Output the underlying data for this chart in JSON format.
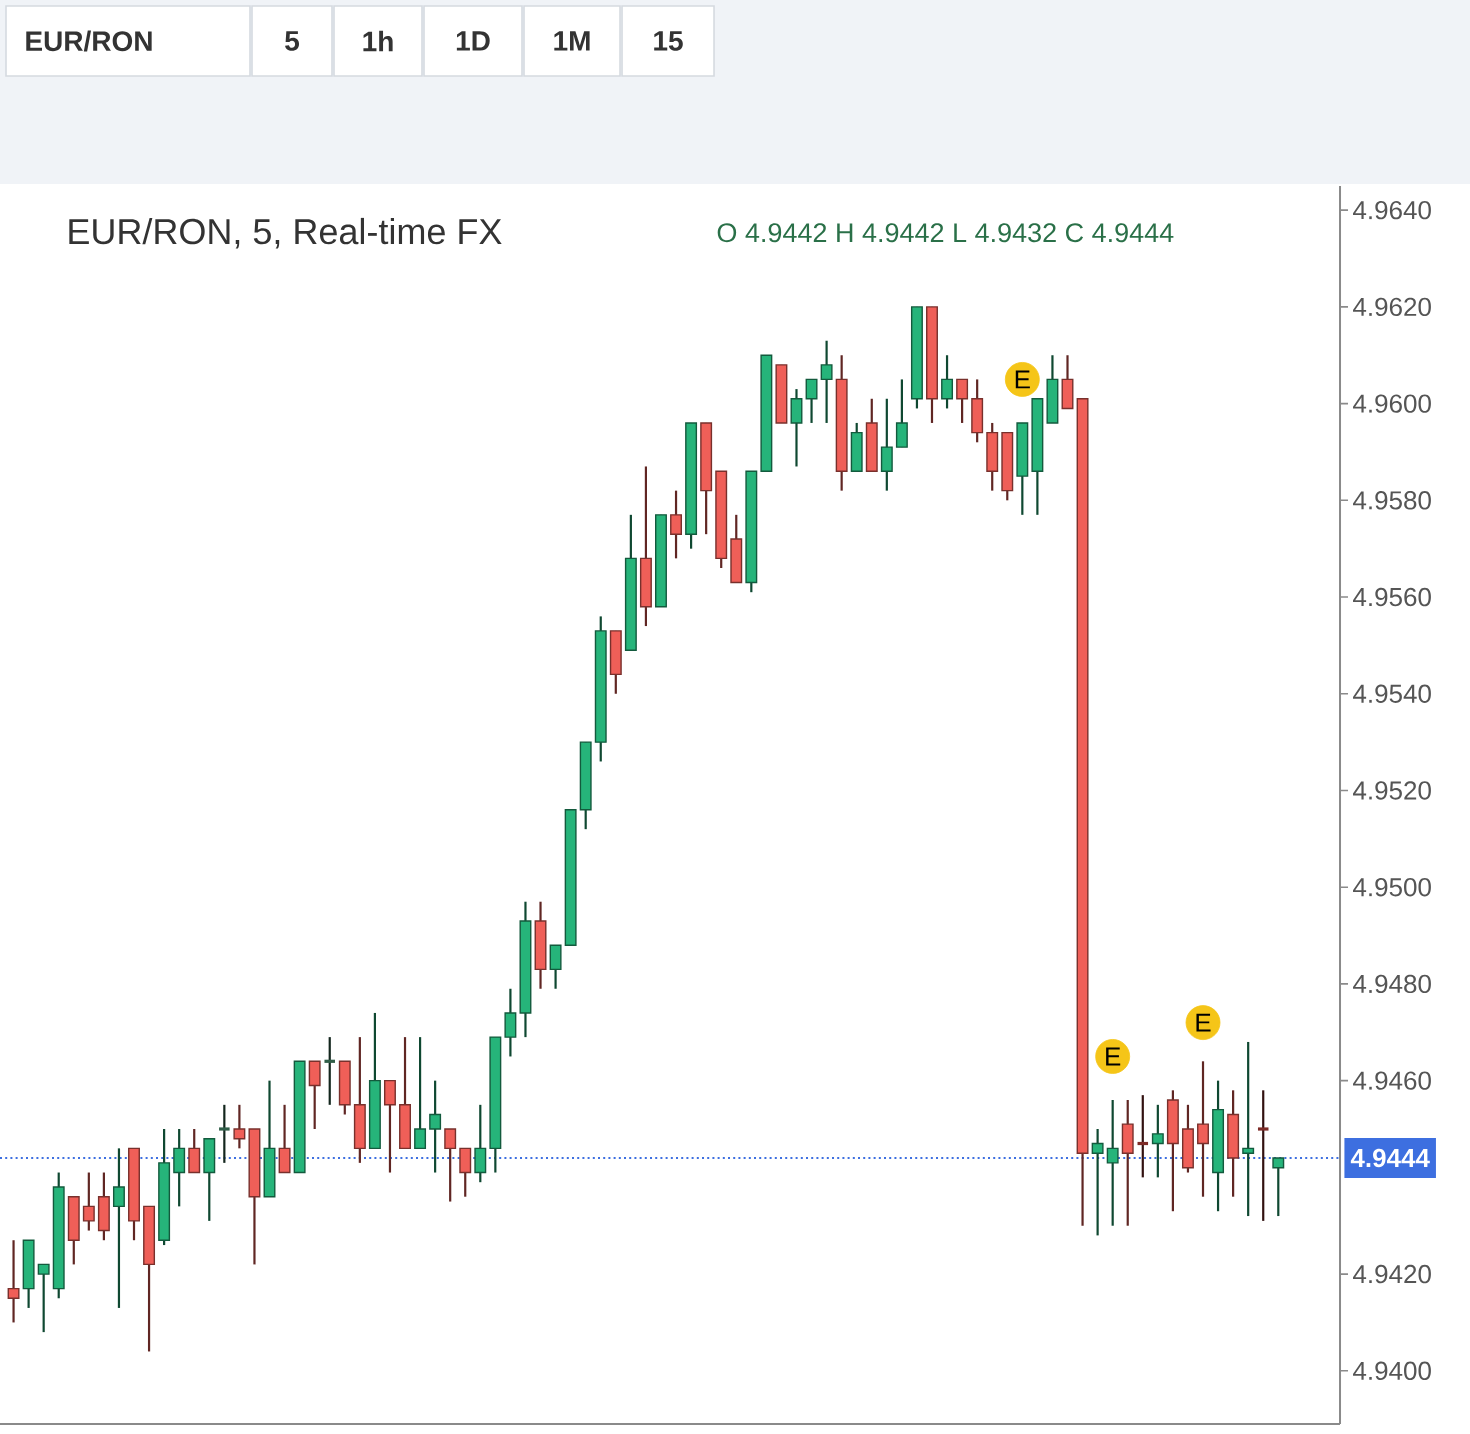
{
  "chart_data": {
    "type": "candlestick",
    "title": "EUR/RON, 5, Real-time FX",
    "subtitle": "O 4.9442 H 4.9442 L 4.9432 C 4.9444",
    "annotations": [
      "EUR/RON",
      "5",
      "1h",
      "1D",
      "1M",
      "15"
    ],
    "categories": [
      null,
      null,
      null,
      null,
      null,
      null,
      null,
      null,
      null,
      null,
      null,
      null,
      null,
      null,
      null,
      null,
      null,
      null,
      null,
      null,
      null,
      null,
      null,
      null,
      null,
      null,
      null,
      null,
      null,
      null,
      null,
      null,
      null,
      null,
      null,
      null,
      null,
      null,
      null,
      null,
      null,
      null,
      null,
      null,
      null,
      null,
      null,
      null,
      null,
      null,
      null,
      null,
      null,
      null,
      null,
      null,
      null,
      null,
      null,
      null,
      null,
      null,
      null,
      null,
      null,
      null,
      null,
      null,
      null,
      null,
      null,
      null,
      null,
      null,
      null,
      null,
      null,
      null,
      null,
      null,
      null,
      null,
      null,
      null,
      null
    ],
    "ohlc": [
      [
        4.9417,
        4.9427,
        4.941,
        4.9415
      ],
      [
        4.9417,
        4.9427,
        4.9413,
        4.9427
      ],
      [
        4.942,
        4.9422,
        4.9408,
        4.9422
      ],
      [
        4.9417,
        4.9441,
        4.9415,
        4.9438
      ],
      [
        4.9436,
        4.9436,
        4.9422,
        4.9427
      ],
      [
        4.9434,
        4.9441,
        4.9429,
        4.9431
      ],
      [
        4.9436,
        4.9441,
        4.9427,
        4.9429
      ],
      [
        4.9434,
        4.9446,
        4.9413,
        4.9438
      ],
      [
        4.9446,
        4.9446,
        4.9427,
        4.9431
      ],
      [
        4.9434,
        4.9434,
        4.9404,
        4.9422
      ],
      [
        4.9427,
        4.945,
        4.9426,
        4.9443
      ],
      [
        4.9441,
        4.945,
        4.9434,
        4.9446
      ],
      [
        4.9446,
        4.945,
        4.9441,
        4.9441
      ],
      [
        4.9441,
        4.9448,
        4.9431,
        4.9448
      ],
      [
        4.945,
        4.9455,
        4.9443,
        4.945
      ],
      [
        4.945,
        4.9455,
        4.9446,
        4.9448
      ],
      [
        4.945,
        4.945,
        4.9422,
        4.9436
      ],
      [
        4.9436,
        4.946,
        4.9436,
        4.9446
      ],
      [
        4.9446,
        4.9455,
        4.9441,
        4.9441
      ],
      [
        4.9441,
        4.9464,
        4.9441,
        4.9464
      ],
      [
        4.9464,
        4.9464,
        4.945,
        4.9459
      ],
      [
        4.9464,
        4.9469,
        4.9455,
        4.9464
      ],
      [
        4.9464,
        4.9464,
        4.9453,
        4.9455
      ],
      [
        4.9455,
        4.9469,
        4.9443,
        4.9446
      ],
      [
        4.9446,
        4.9474,
        4.9446,
        4.946
      ],
      [
        4.946,
        4.946,
        4.9441,
        4.9455
      ],
      [
        4.9455,
        4.9469,
        4.9446,
        4.9446
      ],
      [
        4.9446,
        4.9469,
        4.9446,
        4.945
      ],
      [
        4.945,
        4.946,
        4.9441,
        4.9453
      ],
      [
        4.945,
        4.945,
        4.9435,
        4.9446
      ],
      [
        4.9446,
        4.9446,
        4.9436,
        4.9441
      ],
      [
        4.9441,
        4.9455,
        4.9439,
        4.9446
      ],
      [
        4.9446,
        4.9469,
        4.9441,
        4.9469
      ],
      [
        4.9469,
        4.9479,
        4.9465,
        4.9474
      ],
      [
        4.9474,
        4.9497,
        4.9469,
        4.9493
      ],
      [
        4.9493,
        4.9497,
        4.9479,
        4.9483
      ],
      [
        4.9483,
        4.9488,
        4.9479,
        4.9488
      ],
      [
        4.9488,
        4.9516,
        4.9488,
        4.9516
      ],
      [
        4.9516,
        4.953,
        4.9512,
        4.953
      ],
      [
        4.953,
        4.9556,
        4.9526,
        4.9553
      ],
      [
        4.9553,
        4.9553,
        4.954,
        4.9544
      ],
      [
        4.9549,
        4.9577,
        4.9549,
        4.9568
      ],
      [
        4.9568,
        4.9587,
        4.9554,
        4.9558
      ],
      [
        4.9558,
        4.9577,
        4.9558,
        4.9577
      ],
      [
        4.9577,
        4.9582,
        4.9568,
        4.9573
      ],
      [
        4.9573,
        4.9596,
        4.957,
        4.9596
      ],
      [
        4.9596,
        4.9596,
        4.9573,
        4.9582
      ],
      [
        4.9586,
        4.9586,
        4.9566,
        4.9568
      ],
      [
        4.9572,
        4.9577,
        4.9563,
        4.9563
      ],
      [
        4.9563,
        4.9586,
        4.9561,
        4.9586
      ],
      [
        4.9586,
        4.961,
        4.9586,
        4.961
      ],
      [
        4.9608,
        4.9608,
        4.9596,
        4.9596
      ],
      [
        4.9596,
        4.9603,
        4.9587,
        4.9601
      ],
      [
        4.9601,
        4.9605,
        4.9596,
        4.9605
      ],
      [
        4.9605,
        4.9613,
        4.9596,
        4.9608
      ],
      [
        4.9605,
        4.961,
        4.9582,
        4.9586
      ],
      [
        4.9586,
        4.9596,
        4.9586,
        4.9594
      ],
      [
        4.9596,
        4.9601,
        4.9586,
        4.9586
      ],
      [
        4.9586,
        4.9601,
        4.9582,
        4.9591
      ],
      [
        4.9591,
        4.9605,
        4.9591,
        4.9596
      ],
      [
        4.9601,
        4.962,
        4.9599,
        4.962
      ],
      [
        4.962,
        4.962,
        4.9596,
        4.9601
      ],
      [
        4.9601,
        4.961,
        4.9599,
        4.9605
      ],
      [
        4.9605,
        4.9605,
        4.9596,
        4.9601
      ],
      [
        4.9601,
        4.9605,
        4.9592,
        4.9594
      ],
      [
        4.9594,
        4.9596,
        4.9582,
        4.9586
      ],
      [
        4.9594,
        4.9594,
        4.958,
        4.9582
      ],
      [
        4.9585,
        4.9596,
        4.9577,
        4.9596
      ],
      [
        4.9586,
        4.9601,
        4.9577,
        4.9601
      ],
      [
        4.9596,
        4.961,
        4.9596,
        4.9605
      ],
      [
        4.9605,
        4.961,
        4.9599,
        4.9599
      ],
      [
        4.9601,
        4.9601,
        4.943,
        4.9445
      ],
      [
        4.9445,
        4.945,
        4.9428,
        4.9447
      ],
      [
        4.9443,
        4.9456,
        4.943,
        4.9446
      ],
      [
        4.9451,
        4.9456,
        4.943,
        4.9445
      ],
      [
        4.9447,
        4.9457,
        4.944,
        4.9447
      ],
      [
        4.9447,
        4.9455,
        4.944,
        4.9449
      ],
      [
        4.9456,
        4.9458,
        4.9433,
        4.9447
      ],
      [
        4.945,
        4.9455,
        4.9441,
        4.9442
      ],
      [
        4.9451,
        4.9464,
        4.9436,
        4.9447
      ],
      [
        4.9441,
        4.946,
        4.9433,
        4.9454
      ],
      [
        4.9453,
        4.9458,
        4.9436,
        4.9444
      ],
      [
        4.9445,
        4.9468,
        4.9432,
        4.9446
      ],
      [
        4.945,
        4.9458,
        4.9431,
        4.945
      ],
      [
        4.9442,
        4.9444,
        4.9432,
        4.9444
      ]
    ],
    "colors": [
      "#ef5f58",
      "#26b47a",
      "#26b47a",
      "#26b47a",
      "#ef5f58",
      "#ef5f58",
      "#ef5f58",
      "#26b47a",
      "#ef5f58",
      "#ef5f58",
      "#26b47a",
      "#26b47a",
      "#ef5f58",
      "#26b47a",
      "#2f5e48",
      "#ef5f58",
      "#ef5f58",
      "#26b47a",
      "#ef5f58",
      "#26b47a",
      "#ef5f58",
      "#2f5e48",
      "#ef5f58",
      "#ef5f58",
      "#26b47a",
      "#ef5f58",
      "#ef5f58",
      "#26b47a",
      "#26b47a",
      "#ef5f58",
      "#ef5f58",
      "#26b47a",
      "#26b47a",
      "#26b47a",
      "#26b47a",
      "#ef5f58",
      "#26b47a",
      "#26b47a",
      "#26b47a",
      "#26b47a",
      "#ef5f58",
      "#26b47a",
      "#ef5f58",
      "#26b47a",
      "#ef5f58",
      "#26b47a",
      "#ef5f58",
      "#ef5f58",
      "#ef5f58",
      "#26b47a",
      "#26b47a",
      "#ef5f58",
      "#26b47a",
      "#26b47a",
      "#26b47a",
      "#ef5f58",
      "#26b47a",
      "#ef5f58",
      "#26b47a",
      "#26b47a",
      "#26b47a",
      "#ef5f58",
      "#26b47a",
      "#ef5f58",
      "#ef5f58",
      "#ef5f58",
      "#ef5f58",
      "#26b47a",
      "#26b47a",
      "#26b47a",
      "#ef5f58",
      "#ef5f58",
      "#26b47a",
      "#26b47a",
      "#ef5f58",
      "#7d2b27",
      "#26b47a",
      "#ef5f58",
      "#ef5f58",
      "#ef5f58",
      "#26b47a",
      "#ef5f58",
      "#26b47a",
      "#7d2b27",
      "#26b47a"
    ],
    "series": [
      {
        "type": "scatter",
        "name": "E",
        "color": "#f5c518",
        "marker": "circle",
        "values": [
          null,
          null,
          null,
          null,
          null,
          null,
          null,
          null,
          null,
          null,
          null,
          null,
          null,
          null,
          null,
          null,
          null,
          null,
          null,
          null,
          null,
          null,
          null,
          null,
          null,
          null,
          null,
          null,
          null,
          null,
          null,
          null,
          null,
          null,
          null,
          null,
          null,
          null,
          null,
          null,
          null,
          null,
          null,
          null,
          null,
          null,
          null,
          null,
          null,
          null,
          null,
          null,
          null,
          null,
          null,
          null,
          null,
          null,
          null,
          null,
          null,
          null,
          null,
          null,
          null,
          null,
          null,
          4.9605,
          null,
          null,
          null,
          null,
          null,
          4.9465,
          null,
          null,
          null,
          null,
          null,
          4.9472,
          null,
          null,
          null,
          null,
          null
        ]
      }
    ],
    "ylim": [
      4.9389,
      4.9645
    ],
    "yticks": [
      {
        "value": 4.94,
        "label": "4.9400"
      },
      {
        "value": 4.942,
        "label": "4.9420"
      },
      {
        "value": 4.946,
        "label": "4.9460"
      },
      {
        "value": 4.948,
        "label": "4.9480"
      },
      {
        "value": 4.95,
        "label": "4.9500"
      },
      {
        "value": 4.952,
        "label": "4.9520"
      },
      {
        "value": 4.954,
        "label": "4.9540"
      },
      {
        "value": 4.956,
        "label": "4.9560"
      },
      {
        "value": 4.958,
        "label": "4.9580"
      },
      {
        "value": 4.96,
        "label": "4.9600"
      },
      {
        "value": 4.962,
        "label": "4.9620"
      },
      {
        "value": 4.964,
        "label": "4.9640"
      }
    ],
    "ref_lines": [
      {
        "axis": "y",
        "value": 4.9444,
        "label": "4.9444",
        "color": "#3d6fe0",
        "line_style": "dotted"
      }
    ],
    "tick_labels": "y"
  }
}
